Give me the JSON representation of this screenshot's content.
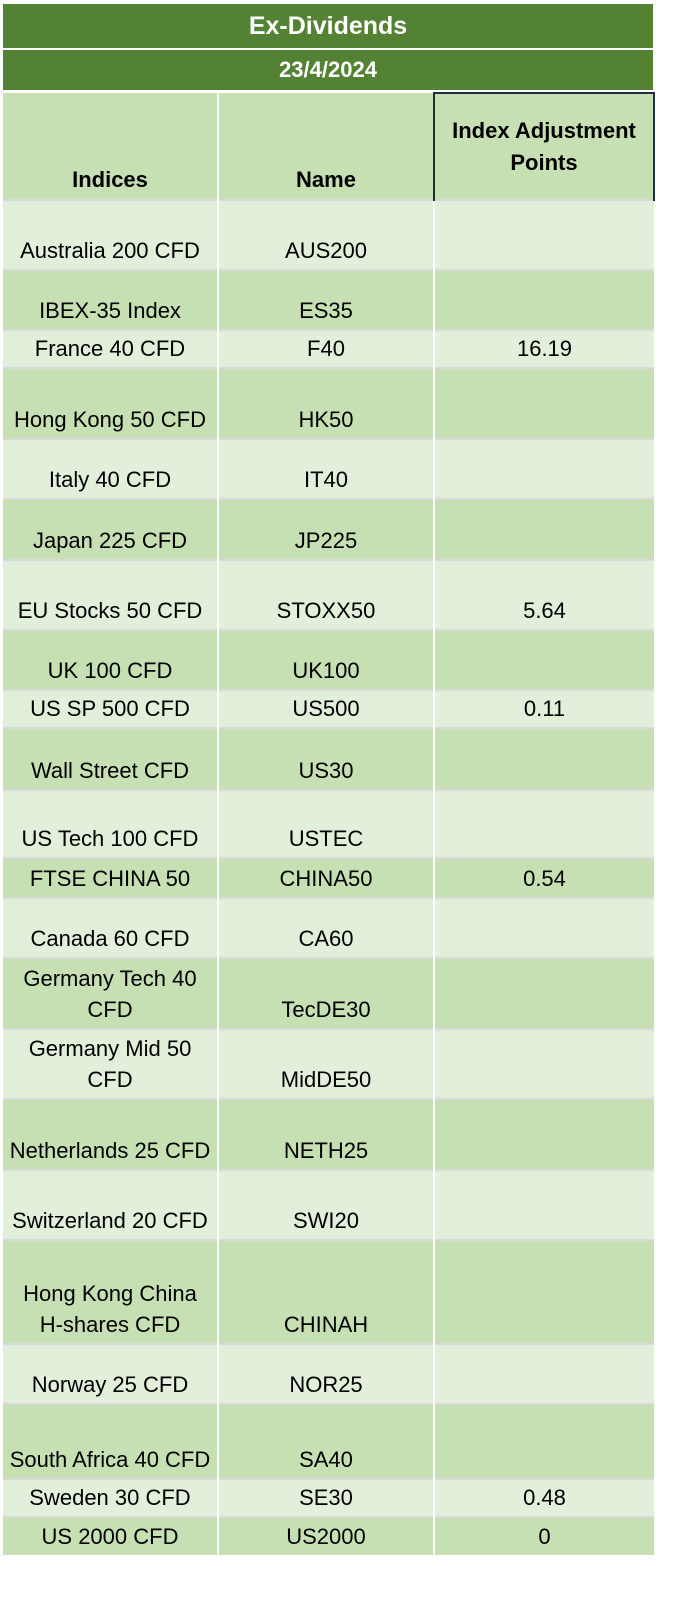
{
  "title": "Ex-Dividends",
  "date": "23/4/2024",
  "columns": {
    "indices": "Indices",
    "name": "Name",
    "adjustment": "Index Adjustment Points"
  },
  "rows": [
    {
      "index": "Australia 200 CFD",
      "name": "AUS200",
      "points": ""
    },
    {
      "index": "IBEX-35 Index",
      "name": "ES35",
      "points": ""
    },
    {
      "index": "France 40 CFD",
      "name": "F40",
      "points": "16.19"
    },
    {
      "index": "Hong Kong 50 CFD",
      "name": "HK50",
      "points": ""
    },
    {
      "index": "Italy 40 CFD",
      "name": "IT40",
      "points": ""
    },
    {
      "index": "Japan 225 CFD",
      "name": "JP225",
      "points": ""
    },
    {
      "index": "EU Stocks 50 CFD",
      "name": "STOXX50",
      "points": "5.64"
    },
    {
      "index": "UK 100 CFD",
      "name": "UK100",
      "points": ""
    },
    {
      "index": "US SP 500 CFD",
      "name": "US500",
      "points": "0.11"
    },
    {
      "index": "Wall Street CFD",
      "name": "US30",
      "points": ""
    },
    {
      "index": "US Tech 100 CFD",
      "name": "USTEC",
      "points": ""
    },
    {
      "index": "FTSE CHINA 50",
      "name": "CHINA50",
      "points": "0.54"
    },
    {
      "index": "Canada 60 CFD",
      "name": "CA60",
      "points": ""
    },
    {
      "index": "Germany Tech 40 CFD",
      "name": "TecDE30",
      "points": ""
    },
    {
      "index": "Germany Mid 50 CFD",
      "name": "MidDE50",
      "points": ""
    },
    {
      "index": "Netherlands 25 CFD",
      "name": "NETH25",
      "points": ""
    },
    {
      "index": "Switzerland 20 CFD",
      "name": "SWI20",
      "points": ""
    },
    {
      "index": "Hong Kong China H-shares CFD",
      "name": "CHINAH",
      "points": ""
    },
    {
      "index": "Norway 25 CFD",
      "name": "NOR25",
      "points": ""
    },
    {
      "index": "South Africa 40 CFD",
      "name": "SA40",
      "points": ""
    },
    {
      "index": "Sweden 30 CFD",
      "name": "SE30",
      "points": "0.48"
    },
    {
      "index": "US 2000 CFD",
      "name": "US2000",
      "points": "0"
    }
  ],
  "colors": {
    "header_green": "#548235",
    "row_light": "#e2efda",
    "row_dark": "#c6e0b4"
  }
}
